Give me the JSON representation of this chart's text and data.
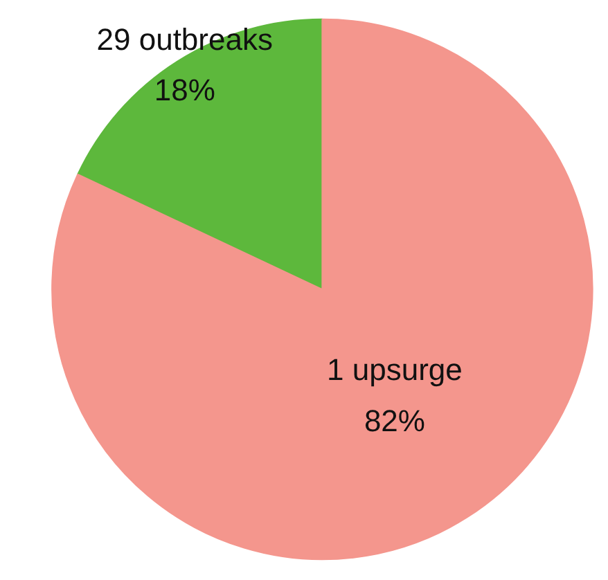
{
  "chart_data": {
    "type": "pie",
    "categories": [
      "29 outbreaks",
      "1 upsurge"
    ],
    "values": [
      18,
      82
    ],
    "colors": [
      "#5db83c",
      "#f4968d"
    ],
    "value_labels": [
      "18%",
      "82%"
    ]
  }
}
